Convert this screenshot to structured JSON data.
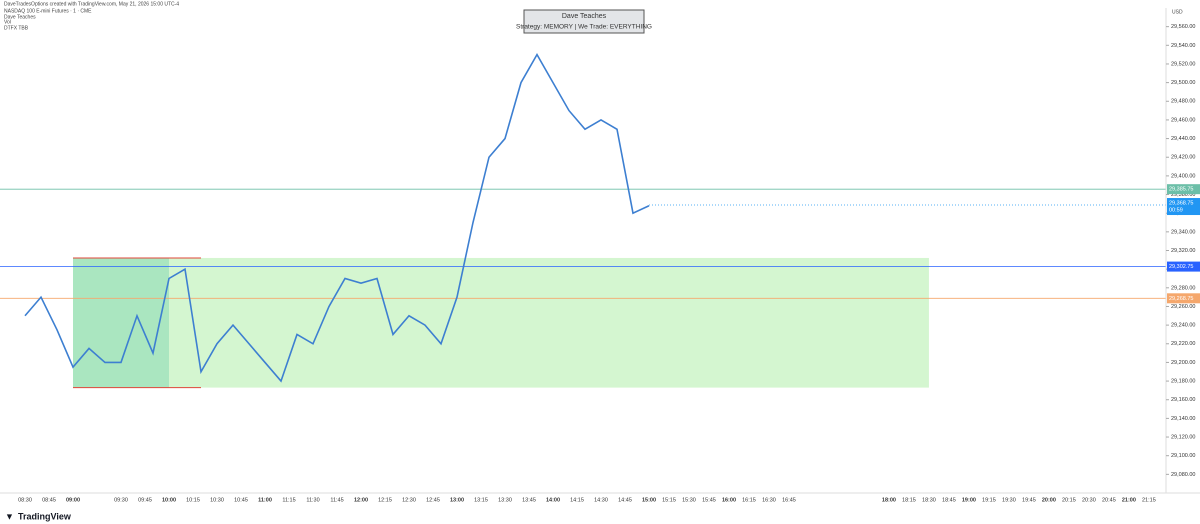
{
  "header": {
    "credit": "DaveTradesOptions created with TradingView.com, May 21, 2026 15:00 UTC-4",
    "symbol": "NASDAQ 100 E-mini Futures · 1 · CME",
    "indicators": [
      "Dave Teaches",
      "Vol",
      "DTFX TBB"
    ],
    "watermark": "TradingView"
  },
  "banner": {
    "title": "Dave Teaches",
    "subtitle": "Strategy: MEMORY | We Trade: EVERYTHING"
  },
  "chart_data": {
    "type": "line",
    "currency": "USD",
    "x": [
      "08:30",
      "08:40",
      "08:50",
      "09:00",
      "09:10",
      "09:20",
      "09:30",
      "09:40",
      "09:50",
      "10:00",
      "10:10",
      "10:20",
      "10:30",
      "10:40",
      "10:50",
      "11:00",
      "11:10",
      "11:20",
      "11:30",
      "11:40",
      "11:50",
      "12:00",
      "12:10",
      "12:20",
      "12:30",
      "12:40",
      "12:50",
      "13:00",
      "13:10",
      "13:20",
      "13:30",
      "13:40",
      "13:50",
      "14:00",
      "14:10",
      "14:20",
      "14:30",
      "14:40",
      "14:50",
      "15:00"
    ],
    "series": [
      {
        "name": "NQ",
        "color": "#3d7fd1",
        "values": [
          29250,
          29270,
          29235,
          29195,
          29215,
          29200,
          29200,
          29250,
          29210,
          29290,
          29300,
          29190,
          29220,
          29240,
          29220,
          29200,
          29180,
          29230,
          29220,
          29260,
          29290,
          29285,
          29290,
          29230,
          29250,
          29240,
          29220,
          29270,
          29350,
          29420,
          29440,
          29500,
          29530,
          29500,
          29470,
          29450,
          29460,
          29450,
          29360,
          29368
        ]
      }
    ],
    "ylim": [
      29060,
      29580
    ],
    "yticks": [
      {
        "value": 29080,
        "label": "29,080.00"
      },
      {
        "value": 29100,
        "label": "29,100.00"
      },
      {
        "value": 29120,
        "label": "29,120.00"
      },
      {
        "value": 29140,
        "label": "29,140.00"
      },
      {
        "value": 29160,
        "label": "29,160.00"
      },
      {
        "value": 29180,
        "label": "29,180.00"
      },
      {
        "value": 29200,
        "label": "29,200.00"
      },
      {
        "value": 29220,
        "label": "29,220.00"
      },
      {
        "value": 29240,
        "label": "29,240.00"
      },
      {
        "value": 29260,
        "label": "29,260.00"
      },
      {
        "value": 29280,
        "label": "29,280.00"
      },
      {
        "value": 29300,
        "label": "29,300.00"
      },
      {
        "value": 29320,
        "label": "29,320.00"
      },
      {
        "value": 29340,
        "label": "29,340.00"
      },
      {
        "value": 29360,
        "label": "29,360.00"
      },
      {
        "value": 29380,
        "label": "29,380.00"
      },
      {
        "value": 29400,
        "label": "29,400.00"
      },
      {
        "value": 29420,
        "label": "29,420.00"
      },
      {
        "value": 29440,
        "label": "29,440.00"
      },
      {
        "value": 29460,
        "label": "29,460.00"
      },
      {
        "value": 29480,
        "label": "29,480.00"
      },
      {
        "value": 29500,
        "label": "29,500.00"
      },
      {
        "value": 29520,
        "label": "29,520.00"
      },
      {
        "value": 29540,
        "label": "29,540.00"
      },
      {
        "value": 29560,
        "label": "29,560.00"
      }
    ],
    "xticks": [
      "08:30",
      "08:45",
      "09:00",
      "09:30",
      "09:45",
      "10:00",
      "10:15",
      "10:30",
      "10:45",
      "11:00",
      "11:15",
      "11:30",
      "11:45",
      "12:00",
      "12:15",
      "12:30",
      "12:45",
      "13:00",
      "13:15",
      "13:30",
      "13:45",
      "14:00",
      "14:15",
      "14:30",
      "14:45",
      "15:00",
      "15:15",
      "15:30",
      "15:45",
      "16:00",
      "16:15",
      "16:30",
      "16:45",
      "18:00",
      "18:15",
      "18:30",
      "18:45",
      "19:00",
      "19:15",
      "19:30",
      "19:45",
      "20:00",
      "20:15",
      "20:30",
      "20:45",
      "21:00",
      "21:15"
    ],
    "levels": [
      {
        "value": 29385.75,
        "label": "29,385.75",
        "color": "#6cbfa8"
      },
      {
        "value": 29302.75,
        "label": "29,302.75",
        "color": "#2962ff"
      },
      {
        "value": 29268.75,
        "label": "29,268.75",
        "color": "#f5a76c"
      }
    ],
    "last_price": {
      "value": 29368.75,
      "label": "29,368.75",
      "countdown": "00:59",
      "color": "#2196f3"
    },
    "zone": {
      "high": 29312,
      "low": 29173,
      "start": "09:00",
      "split": "10:00",
      "end": "18:30",
      "line_end": "10:20"
    }
  }
}
